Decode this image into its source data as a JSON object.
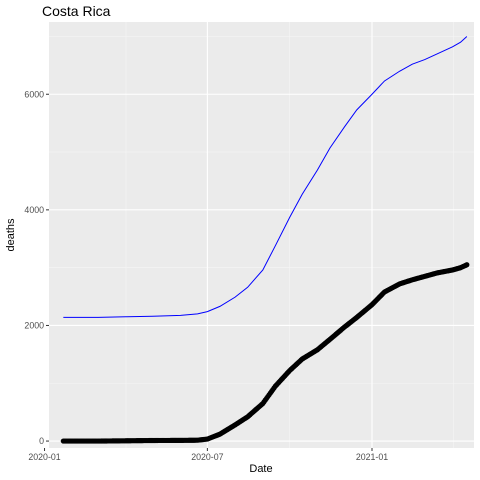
{
  "chart_data": {
    "type": "line",
    "title": "Costa Rica",
    "xlabel": "Date",
    "ylabel": "deaths",
    "x_axis": "date",
    "x_ticks": [
      "2020-01",
      "2020-07",
      "2021-01"
    ],
    "y_ticks": [
      0,
      2000,
      4000,
      6000
    ],
    "xlim": [
      "2020-01-06",
      "2021-04-25"
    ],
    "ylim": [
      -120,
      7250
    ],
    "grid": true,
    "legend": "none",
    "series": [
      {
        "style": "line",
        "color": "#0000ff",
        "points": [
          [
            "2020-01-22",
            2140
          ],
          [
            "2020-03-01",
            2140
          ],
          [
            "2020-04-01",
            2150
          ],
          [
            "2020-05-01",
            2160
          ],
          [
            "2020-06-01",
            2175
          ],
          [
            "2020-06-20",
            2200
          ],
          [
            "2020-07-01",
            2240
          ],
          [
            "2020-07-15",
            2330
          ],
          [
            "2020-08-01",
            2490
          ],
          [
            "2020-08-15",
            2660
          ],
          [
            "2020-09-01",
            2960
          ],
          [
            "2020-09-15",
            3380
          ],
          [
            "2020-10-01",
            3870
          ],
          [
            "2020-10-15",
            4270
          ],
          [
            "2020-11-01",
            4690
          ],
          [
            "2020-11-15",
            5070
          ],
          [
            "2020-12-01",
            5430
          ],
          [
            "2020-12-15",
            5730
          ],
          [
            "2021-01-01",
            6000
          ],
          [
            "2021-01-15",
            6230
          ],
          [
            "2021-02-01",
            6400
          ],
          [
            "2021-02-15",
            6520
          ],
          [
            "2021-03-01",
            6600
          ],
          [
            "2021-03-15",
            6700
          ],
          [
            "2021-04-01",
            6820
          ],
          [
            "2021-04-10",
            6900
          ],
          [
            "2021-04-17",
            7000
          ]
        ]
      },
      {
        "style": "points",
        "color": "#000000",
        "points": [
          [
            "2020-01-22",
            0
          ],
          [
            "2020-03-01",
            0
          ],
          [
            "2020-04-01",
            5
          ],
          [
            "2020-05-01",
            10
          ],
          [
            "2020-06-01",
            12
          ],
          [
            "2020-06-20",
            15
          ],
          [
            "2020-07-01",
            35
          ],
          [
            "2020-07-15",
            120
          ],
          [
            "2020-08-01",
            280
          ],
          [
            "2020-08-15",
            420
          ],
          [
            "2020-09-01",
            650
          ],
          [
            "2020-09-15",
            950
          ],
          [
            "2020-10-01",
            1220
          ],
          [
            "2020-10-15",
            1420
          ],
          [
            "2020-11-01",
            1580
          ],
          [
            "2020-11-15",
            1760
          ],
          [
            "2020-12-01",
            1970
          ],
          [
            "2020-12-15",
            2140
          ],
          [
            "2021-01-01",
            2360
          ],
          [
            "2021-01-15",
            2580
          ],
          [
            "2021-02-01",
            2720
          ],
          [
            "2021-02-15",
            2790
          ],
          [
            "2021-03-01",
            2850
          ],
          [
            "2021-03-15",
            2910
          ],
          [
            "2021-04-01",
            2960
          ],
          [
            "2021-04-10",
            3000
          ],
          [
            "2021-04-17",
            3050
          ]
        ]
      }
    ]
  }
}
